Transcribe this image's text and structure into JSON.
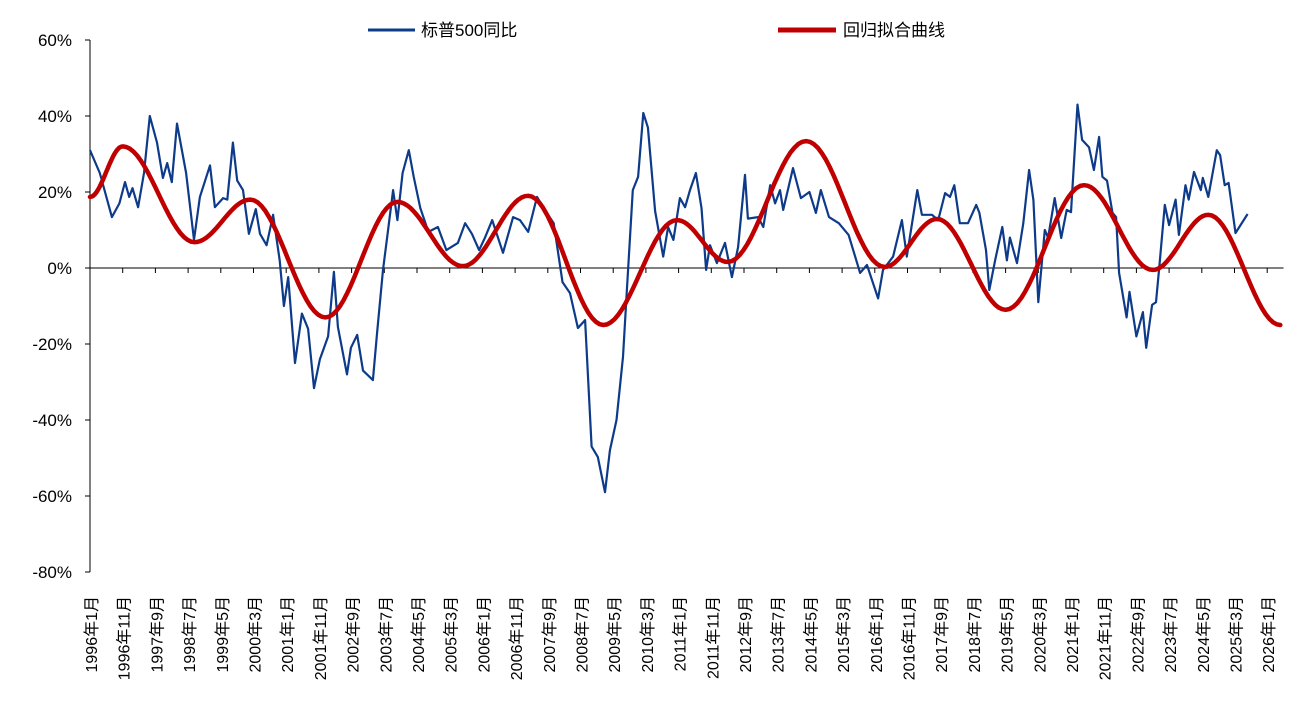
{
  "chart_data": {
    "type": "line",
    "title": "",
    "xlabel": "",
    "ylabel": "",
    "x_unit": "months since 1996-01",
    "ylim": [
      -80,
      60
    ],
    "y_ticks": [
      60,
      40,
      20,
      0,
      -20,
      -40,
      -60,
      -80
    ],
    "y_tick_labels": [
      "60%",
      "40%",
      "20%",
      "0%",
      "-20%",
      "-40%",
      "-60%",
      "-80%"
    ],
    "x_tick_labels": [
      "1996年1月",
      "1996年11月",
      "1997年9月",
      "1998年7月",
      "1999年5月",
      "2000年3月",
      "2001年1月",
      "2001年11月",
      "2002年9月",
      "2003年7月",
      "2004年5月",
      "2005年3月",
      "2006年1月",
      "2006年11月",
      "2007年9月",
      "2008年7月",
      "2009年5月",
      "2010年3月",
      "2011年1月",
      "2011年11月",
      "2012年9月",
      "2013年7月",
      "2014年5月",
      "2015年3月",
      "2016年1月",
      "2016年11月",
      "2017年9月",
      "2018年7月",
      "2019年5月",
      "2020年3月",
      "2021年1月",
      "2021年11月",
      "2022年9月",
      "2023年7月",
      "2024年5月",
      "2025年3月",
      "2026年1月"
    ],
    "x_tick_step_months": 10,
    "xlim_months": [
      0,
      365
    ],
    "grid": false,
    "legend_placement": "top",
    "series": [
      {
        "name": "标普500同比",
        "color": "#0d3b8a",
        "points": [
          [
            0,
            31
          ],
          [
            3,
            25
          ],
          [
            6.7,
            13.4
          ],
          [
            9,
            17
          ],
          [
            10.7,
            22.6
          ],
          [
            12,
            18.7
          ],
          [
            13,
            21
          ],
          [
            14.7,
            16
          ],
          [
            16.5,
            25
          ],
          [
            18.3,
            40
          ],
          [
            20.5,
            33
          ],
          [
            22.3,
            23.7
          ],
          [
            23.6,
            27.6
          ],
          [
            25,
            22.6
          ],
          [
            26.6,
            38
          ],
          [
            29.4,
            25
          ],
          [
            31.8,
            7.4
          ],
          [
            33.6,
            18.7
          ],
          [
            36.7,
            27
          ],
          [
            38.2,
            16
          ],
          [
            40.7,
            18.4
          ],
          [
            42,
            18
          ],
          [
            43.7,
            33
          ],
          [
            45,
            23
          ],
          [
            46.8,
            20.5
          ],
          [
            48.6,
            9
          ],
          [
            50.7,
            15.5
          ],
          [
            52,
            9
          ],
          [
            54,
            6
          ],
          [
            56,
            14
          ],
          [
            58,
            2
          ],
          [
            59.3,
            -10
          ],
          [
            60.6,
            -2.4
          ],
          [
            62.7,
            -25
          ],
          [
            64.8,
            -12
          ],
          [
            66.7,
            -16
          ],
          [
            68.5,
            -31.6
          ],
          [
            70.3,
            -24
          ],
          [
            72.8,
            -18
          ],
          [
            74.6,
            -1
          ],
          [
            75.8,
            -15.5
          ],
          [
            78.6,
            -28
          ],
          [
            79.8,
            -21
          ],
          [
            81.7,
            -17.6
          ],
          [
            83.5,
            -27
          ],
          [
            86.5,
            -29.5
          ],
          [
            87.8,
            -17
          ],
          [
            89.6,
            -0.5
          ],
          [
            91,
            9
          ],
          [
            92.7,
            20.5
          ],
          [
            94,
            12.6
          ],
          [
            95.6,
            25
          ],
          [
            97.5,
            31
          ],
          [
            99,
            24
          ],
          [
            101,
            15.8
          ],
          [
            103.5,
            9.5
          ],
          [
            106.4,
            10.8
          ],
          [
            109,
            4.7
          ],
          [
            112.5,
            6.6
          ],
          [
            114.7,
            11.8
          ],
          [
            116.8,
            9
          ],
          [
            119,
            4.7
          ],
          [
            120.8,
            8
          ],
          [
            123,
            12.6
          ],
          [
            126.3,
            4
          ],
          [
            129.4,
            13.4
          ],
          [
            131.5,
            12.6
          ],
          [
            134,
            9.5
          ],
          [
            136.7,
            18.7
          ],
          [
            139.7,
            14.5
          ],
          [
            141.8,
            11.8
          ],
          [
            144.5,
            -3.7
          ],
          [
            146.8,
            -6.6
          ],
          [
            149.2,
            -15.8
          ],
          [
            151.4,
            -13.7
          ],
          [
            153.4,
            -47
          ],
          [
            155.3,
            -49.7
          ],
          [
            157.5,
            -59
          ],
          [
            159,
            -48
          ],
          [
            161,
            -40
          ],
          [
            163,
            -23.4
          ],
          [
            164,
            -8.4
          ],
          [
            166,
            20.5
          ],
          [
            167.6,
            24
          ],
          [
            169.2,
            40.8
          ],
          [
            170.6,
            37
          ],
          [
            172.8,
            15
          ],
          [
            175.3,
            3
          ],
          [
            176.8,
            10.8
          ],
          [
            178.4,
            7.4
          ],
          [
            180.4,
            18.4
          ],
          [
            182,
            16
          ],
          [
            183.5,
            20.5
          ],
          [
            185.3,
            25
          ],
          [
            187,
            15.8
          ],
          [
            188.4,
            -0.5
          ],
          [
            189.6,
            6
          ],
          [
            191.7,
            1.3
          ],
          [
            194.2,
            6.6
          ],
          [
            196.3,
            -2.4
          ],
          [
            198.2,
            5.5
          ],
          [
            200.3,
            24.5
          ],
          [
            201.2,
            13
          ],
          [
            204.3,
            13.4
          ],
          [
            205.9,
            10.8
          ],
          [
            208,
            21.8
          ],
          [
            209.5,
            17
          ],
          [
            211,
            20.5
          ],
          [
            212,
            15.3
          ],
          [
            215,
            26.3
          ],
          [
            217.4,
            18.4
          ],
          [
            220,
            20
          ],
          [
            222,
            14.5
          ],
          [
            223.5,
            20.5
          ],
          [
            226,
            13.4
          ],
          [
            229,
            11.8
          ],
          [
            232,
            8.7
          ],
          [
            235.5,
            -1.3
          ],
          [
            237.6,
            0.8
          ],
          [
            241,
            -8
          ],
          [
            242.5,
            -0.5
          ],
          [
            245.6,
            3
          ],
          [
            248.3,
            12.6
          ],
          [
            249.8,
            3
          ],
          [
            253,
            20.5
          ],
          [
            254.4,
            14
          ],
          [
            257.5,
            14
          ],
          [
            259.4,
            12.6
          ],
          [
            261.5,
            19.7
          ],
          [
            263,
            18.7
          ],
          [
            264.3,
            21.8
          ],
          [
            266,
            11.8
          ],
          [
            268.5,
            11.8
          ],
          [
            271,
            16.6
          ],
          [
            272,
            14.5
          ],
          [
            274,
            4.7
          ],
          [
            275,
            -5.8
          ],
          [
            276.8,
            2
          ],
          [
            279,
            10.8
          ],
          [
            280.4,
            2
          ],
          [
            281.3,
            8
          ],
          [
            283.5,
            1.3
          ],
          [
            285.4,
            11.8
          ],
          [
            287.2,
            25.8
          ],
          [
            288.5,
            17.9
          ],
          [
            290,
            -9
          ],
          [
            292,
            10
          ],
          [
            293,
            8
          ],
          [
            295,
            18.4
          ],
          [
            297,
            7.9
          ],
          [
            298.7,
            15.3
          ],
          [
            300,
            14.7
          ],
          [
            302,
            43
          ],
          [
            303.4,
            33.7
          ],
          [
            305.5,
            31.8
          ],
          [
            307,
            25.8
          ],
          [
            308.6,
            34.5
          ],
          [
            309.6,
            24
          ],
          [
            311,
            23
          ],
          [
            312.7,
            14.5
          ],
          [
            313.8,
            13.4
          ],
          [
            314.7,
            -1.3
          ],
          [
            317,
            -13
          ],
          [
            317.9,
            -6.3
          ],
          [
            320,
            -18
          ],
          [
            322,
            -11.6
          ],
          [
            323,
            -21
          ],
          [
            324.8,
            -9.7
          ],
          [
            326,
            -9
          ],
          [
            327,
            0.3
          ],
          [
            328.7,
            16.6
          ],
          [
            330,
            11.3
          ],
          [
            332,
            18
          ],
          [
            333,
            8.7
          ],
          [
            335,
            21.8
          ],
          [
            336,
            18
          ],
          [
            337.6,
            25.3
          ],
          [
            339.7,
            20.5
          ],
          [
            340.3,
            23.7
          ],
          [
            342,
            18.7
          ],
          [
            344.6,
            31
          ],
          [
            345.6,
            29.7
          ],
          [
            347,
            21.8
          ],
          [
            348.2,
            22.4
          ],
          [
            350.3,
            9.2
          ],
          [
            354,
            14.2
          ]
        ]
      },
      {
        "name": "回归拟合曲线",
        "color": "#c00000",
        "extrema_points": [
          [
            0,
            18.7
          ],
          [
            10,
            32
          ],
          [
            32,
            6.8
          ],
          [
            49,
            18
          ],
          [
            72,
            -13
          ],
          [
            94,
            17.4
          ],
          [
            114,
            0.5
          ],
          [
            134,
            19
          ],
          [
            157,
            -15
          ],
          [
            179.5,
            12.6
          ],
          [
            195,
            1.6
          ],
          [
            219,
            33.4
          ],
          [
            243,
            0.3
          ],
          [
            259,
            12.9
          ],
          [
            280,
            -11
          ],
          [
            304,
            21.8
          ],
          [
            325,
            -0.5
          ],
          [
            342,
            14
          ],
          [
            364,
            -15
          ]
        ]
      }
    ]
  }
}
